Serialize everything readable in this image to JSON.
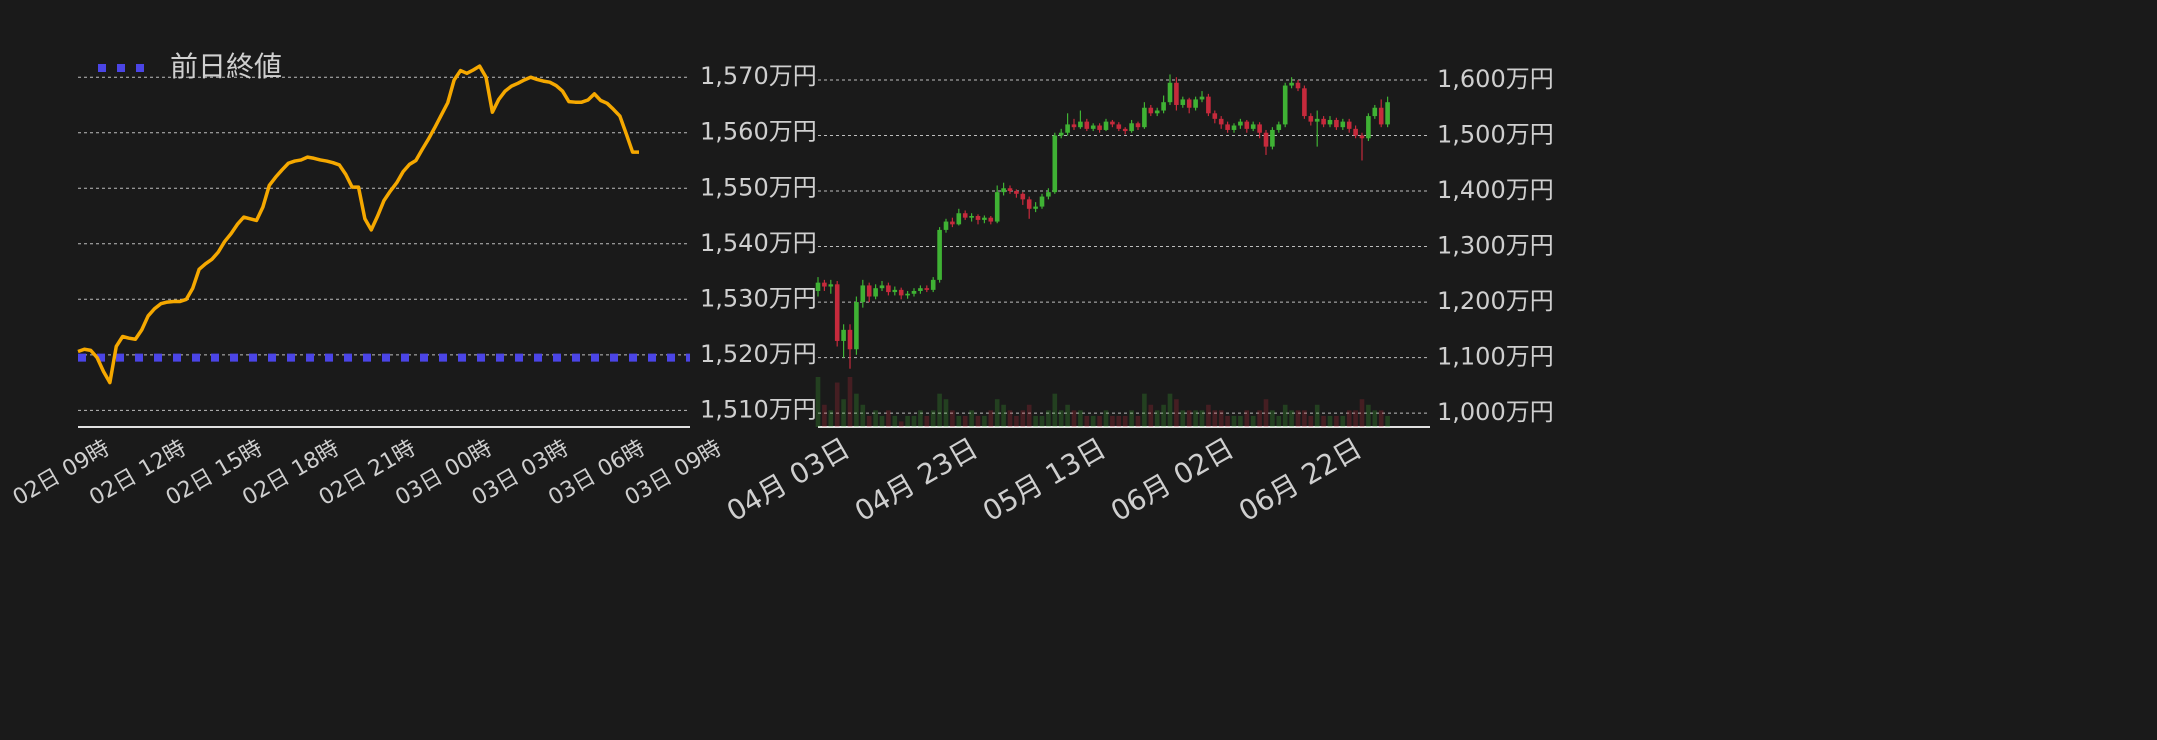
{
  "chart_data": [
    {
      "type": "line",
      "categories": [
        "02日 09時",
        null,
        null,
        null,
        null,
        null,
        null,
        null,
        null,
        null,
        null,
        null,
        "02日 12時",
        null,
        null,
        null,
        null,
        null,
        null,
        null,
        null,
        null,
        null,
        null,
        "02日 15時",
        null,
        null,
        null,
        null,
        null,
        null,
        null,
        null,
        null,
        null,
        null,
        "02日 18時",
        null,
        null,
        null,
        null,
        null,
        null,
        null,
        null,
        null,
        null,
        null,
        "02日 21時",
        null,
        null,
        null,
        null,
        null,
        null,
        null,
        null,
        null,
        null,
        null,
        "03日 00時",
        null,
        null,
        null,
        null,
        null,
        null,
        null,
        null,
        null,
        null,
        null,
        "03日 03時",
        null,
        null,
        null,
        null,
        null,
        null,
        null,
        null,
        null,
        null,
        null,
        "03日 06時",
        null,
        null,
        null,
        null,
        null,
        null,
        null,
        null,
        null,
        null,
        null,
        "03日 09時"
      ],
      "values": [
        1520.6,
        1521,
        1520.8,
        1519.5,
        1517,
        1515,
        1521.5,
        1523.3,
        1523,
        1522.8,
        1524.5,
        1527,
        1528.3,
        1529.2,
        1529.5,
        1529.6,
        1529.6,
        1530,
        1532,
        1535.4,
        1536.4,
        1537.2,
        1538.5,
        1540.4,
        1541.8,
        1543.5,
        1544.8,
        1544.5,
        1544.2,
        1546.6,
        1550.5,
        1552,
        1553.3,
        1554.5,
        1554.9,
        1555.1,
        1555.6,
        1555.4,
        1555.1,
        1554.9,
        1554.6,
        1554.2,
        1552.5,
        1550.2,
        1550.2,
        1544.5,
        1542.5,
        1545,
        1547.8,
        1549.5,
        1551,
        1553,
        1554.3,
        1555,
        1557,
        1558.9,
        1561,
        1563.2,
        1565.4,
        1569.5,
        1571.2,
        1570.7,
        1571.3,
        1572,
        1570,
        1563.7,
        1566,
        1567.5,
        1568.4,
        1568.9,
        1569.5,
        1570,
        1569.6,
        1569.3,
        1569.1,
        1568.5,
        1567.5,
        1565.6,
        1565.5,
        1565.5,
        1565.9,
        1567,
        1565.8,
        1565.3,
        1564.2,
        1563,
        1559.8,
        1556.5,
        1556.5,
        null,
        null,
        null,
        null,
        null,
        null,
        null,
        null
      ],
      "color": "#f5a800",
      "reference_lines": [
        {
          "name": "前日終値",
          "value": 1519.5,
          "color": "#4b45e6"
        }
      ],
      "ylim": [
        1507,
        1574
      ],
      "yticks": [
        {
          "value": 1510,
          "label": "1,510万円"
        },
        {
          "value": 1520,
          "label": "1,520万円"
        },
        {
          "value": 1530,
          "label": "1,530万円"
        },
        {
          "value": 1540,
          "label": "1,540万円"
        },
        {
          "value": 1550,
          "label": "1,550万円"
        },
        {
          "value": 1560,
          "label": "1,560万円"
        },
        {
          "value": 1570,
          "label": "1,570万円"
        }
      ],
      "grid": true
    },
    {
      "type": "candlestick",
      "categories": [
        "04月 03日",
        null,
        null,
        null,
        null,
        null,
        null,
        null,
        null,
        null,
        null,
        null,
        null,
        null,
        null,
        null,
        null,
        null,
        null,
        null,
        "04月 23日",
        null,
        null,
        null,
        null,
        null,
        null,
        null,
        null,
        null,
        null,
        null,
        null,
        null,
        null,
        null,
        null,
        null,
        null,
        null,
        "05月 13日",
        null,
        null,
        null,
        null,
        null,
        null,
        null,
        null,
        null,
        null,
        null,
        null,
        null,
        null,
        null,
        null,
        null,
        null,
        null,
        "06月 02日",
        null,
        null,
        null,
        null,
        null,
        null,
        null,
        null,
        null,
        null,
        null,
        null,
        null,
        null,
        null,
        null,
        null,
        null,
        null,
        "06月 22日",
        null,
        null,
        null,
        null,
        null,
        null,
        null,
        null,
        null
      ],
      "ohlc": [
        [
          1220,
          1245,
          1210,
          1235
        ],
        [
          1235,
          1240,
          1220,
          1228
        ],
        [
          1228,
          1240,
          1215,
          1232
        ],
        [
          1232,
          1238,
          1120,
          1130
        ],
        [
          1130,
          1160,
          1100,
          1150
        ],
        [
          1150,
          1160,
          1080,
          1115
        ],
        [
          1115,
          1210,
          1105,
          1200
        ],
        [
          1200,
          1240,
          1190,
          1230
        ],
        [
          1230,
          1235,
          1200,
          1210
        ],
        [
          1210,
          1232,
          1205,
          1225
        ],
        [
          1225,
          1238,
          1220,
          1230
        ],
        [
          1230,
          1235,
          1212,
          1218
        ],
        [
          1218,
          1228,
          1212,
          1222
        ],
        [
          1222,
          1226,
          1205,
          1212
        ],
        [
          1212,
          1220,
          1206,
          1215
        ],
        [
          1215,
          1225,
          1210,
          1220
        ],
        [
          1220,
          1230,
          1215,
          1225
        ],
        [
          1225,
          1230,
          1218,
          1222
        ],
        [
          1222,
          1245,
          1218,
          1240
        ],
        [
          1240,
          1335,
          1235,
          1330
        ],
        [
          1330,
          1350,
          1325,
          1345
        ],
        [
          1345,
          1352,
          1335,
          1340
        ],
        [
          1340,
          1368,
          1338,
          1360
        ],
        [
          1360,
          1365,
          1348,
          1352
        ],
        [
          1352,
          1360,
          1345,
          1355
        ],
        [
          1355,
          1358,
          1340,
          1348
        ],
        [
          1348,
          1356,
          1342,
          1352
        ],
        [
          1352,
          1355,
          1340,
          1345
        ],
        [
          1345,
          1410,
          1342,
          1398
        ],
        [
          1398,
          1415,
          1392,
          1405
        ],
        [
          1405,
          1410,
          1395,
          1400
        ],
        [
          1400,
          1403,
          1388,
          1395
        ],
        [
          1395,
          1398,
          1375,
          1385
        ],
        [
          1385,
          1390,
          1350,
          1368
        ],
        [
          1368,
          1380,
          1362,
          1372
        ],
        [
          1372,
          1395,
          1368,
          1390
        ],
        [
          1390,
          1405,
          1385,
          1398
        ],
        [
          1398,
          1505,
          1395,
          1500
        ],
        [
          1500,
          1512,
          1495,
          1505
        ],
        [
          1505,
          1540,
          1500,
          1520
        ],
        [
          1520,
          1530,
          1510,
          1515
        ],
        [
          1515,
          1545,
          1512,
          1525
        ],
        [
          1525,
          1530,
          1508,
          1512
        ],
        [
          1512,
          1522,
          1508,
          1518
        ],
        [
          1518,
          1522,
          1505,
          1510
        ],
        [
          1510,
          1530,
          1508,
          1525
        ],
        [
          1525,
          1528,
          1515,
          1520
        ],
        [
          1520,
          1524,
          1508,
          1512
        ],
        [
          1512,
          1515,
          1502,
          1508
        ],
        [
          1508,
          1528,
          1505,
          1522
        ],
        [
          1522,
          1525,
          1510,
          1515
        ],
        [
          1515,
          1560,
          1512,
          1550
        ],
        [
          1550,
          1555,
          1535,
          1540
        ],
        [
          1540,
          1550,
          1535,
          1545
        ],
        [
          1545,
          1572,
          1540,
          1560
        ],
        [
          1560,
          1610,
          1555,
          1595
        ],
        [
          1595,
          1605,
          1545,
          1555
        ],
        [
          1555,
          1570,
          1550,
          1565
        ],
        [
          1565,
          1568,
          1540,
          1550
        ],
        [
          1550,
          1570,
          1545,
          1565
        ],
        [
          1565,
          1580,
          1560,
          1570
        ],
        [
          1570,
          1575,
          1535,
          1540
        ],
        [
          1540,
          1545,
          1522,
          1530
        ],
        [
          1530,
          1535,
          1512,
          1520
        ],
        [
          1520,
          1525,
          1505,
          1510
        ],
        [
          1510,
          1522,
          1505,
          1518
        ],
        [
          1518,
          1530,
          1512,
          1525
        ],
        [
          1525,
          1528,
          1505,
          1512
        ],
        [
          1512,
          1525,
          1508,
          1520
        ],
        [
          1520,
          1524,
          1495,
          1505
        ],
        [
          1505,
          1510,
          1465,
          1480
        ],
        [
          1480,
          1515,
          1475,
          1510
        ],
        [
          1510,
          1525,
          1505,
          1520
        ],
        [
          1520,
          1595,
          1515,
          1590
        ],
        [
          1590,
          1605,
          1585,
          1595
        ],
        [
          1595,
          1600,
          1580,
          1585
        ],
        [
          1585,
          1590,
          1530,
          1535
        ],
        [
          1535,
          1540,
          1518,
          1525
        ],
        [
          1525,
          1545,
          1480,
          1530
        ],
        [
          1530,
          1535,
          1515,
          1520
        ],
        [
          1520,
          1535,
          1515,
          1528
        ],
        [
          1528,
          1532,
          1510,
          1515
        ],
        [
          1515,
          1530,
          1510,
          1525
        ],
        [
          1525,
          1530,
          1505,
          1512
        ],
        [
          1512,
          1518,
          1495,
          1500
        ],
        [
          1500,
          1505,
          1455,
          1495
        ],
        [
          1495,
          1540,
          1490,
          1535
        ],
        [
          1535,
          1555,
          1530,
          1550
        ],
        [
          1550,
          1565,
          1515,
          1520
        ],
        [
          1520,
          1570,
          1515,
          1560
        ]
      ],
      "volume": [
        9,
        4,
        3,
        8,
        5,
        9,
        6,
        4,
        2,
        3,
        2,
        3,
        2,
        1,
        2,
        2,
        3,
        2,
        3,
        6,
        5,
        3,
        2,
        2,
        3,
        2,
        2,
        3,
        5,
        4,
        3,
        2,
        3,
        4,
        2,
        2,
        3,
        6,
        3,
        4,
        3,
        3,
        2,
        2,
        2,
        3,
        2,
        2,
        2,
        3,
        2,
        6,
        4,
        3,
        4,
        6,
        5,
        3,
        3,
        3,
        3,
        4,
        3,
        3,
        2,
        2,
        2,
        3,
        2,
        3,
        5,
        3,
        2,
        4,
        3,
        3,
        3,
        2,
        4,
        2,
        2,
        2,
        2,
        3,
        3,
        5,
        4,
        3,
        3,
        2
      ],
      "up_color": "#3fb234",
      "down_color": "#c62a3c",
      "ylim": [
        975,
        1645
      ],
      "yticks": [
        {
          "value": 1000,
          "label": "1,000万円"
        },
        {
          "value": 1100,
          "label": "1,100万円"
        },
        {
          "value": 1200,
          "label": "1,200万円"
        },
        {
          "value": 1300,
          "label": "1,300万円"
        },
        {
          "value": 1400,
          "label": "1,400万円"
        },
        {
          "value": 1500,
          "label": "1,500万円"
        },
        {
          "value": 1600,
          "label": "1,600万円"
        }
      ],
      "grid": true
    }
  ]
}
